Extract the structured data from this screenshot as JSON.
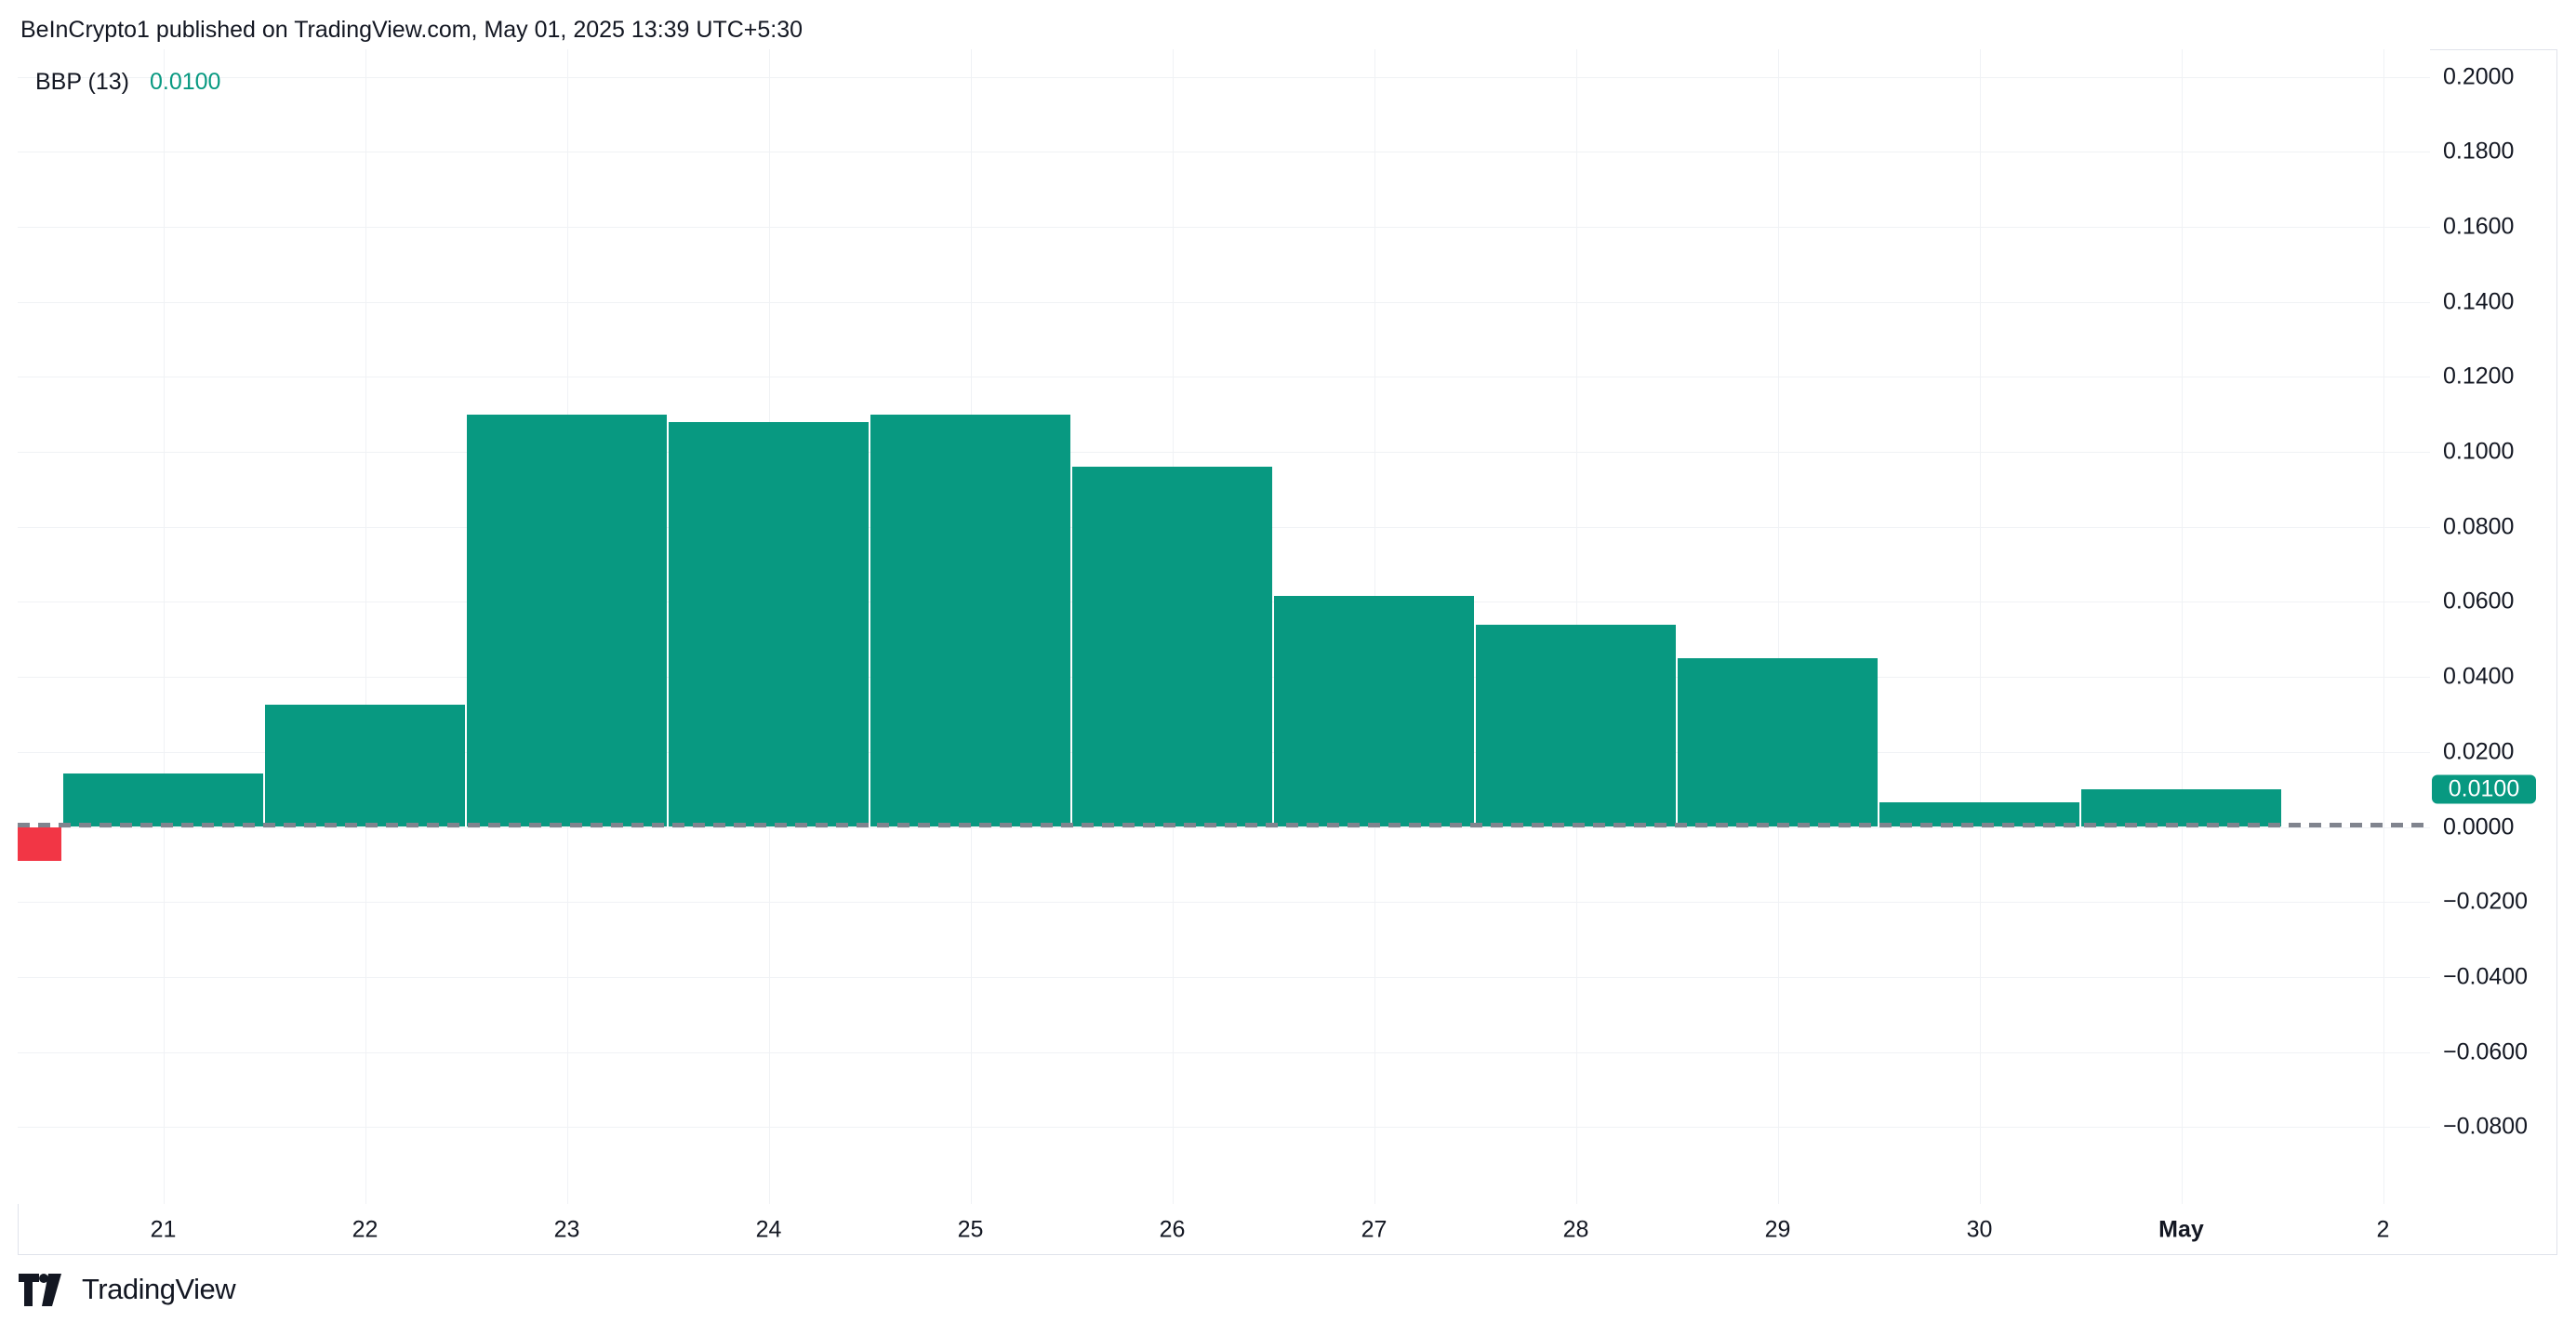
{
  "header": {
    "title": "BeInCrypto1 published on TradingView.com, May 01, 2025 13:39 UTC+5:30"
  },
  "legend": {
    "indicator": "BBP (13)",
    "value": "0.0100"
  },
  "y_axis": {
    "tick_labels": [
      "0.2000",
      "0.1800",
      "0.1600",
      "0.1400",
      "0.1200",
      "0.1000",
      "0.0800",
      "0.0600",
      "0.0400",
      "0.0200",
      "0.0000",
      "−0.0200",
      "−0.0400",
      "−0.0600",
      "−0.0800"
    ],
    "tick_values": [
      0.2,
      0.18,
      0.16,
      0.14,
      0.12,
      0.1,
      0.08,
      0.06,
      0.04,
      0.02,
      0.0,
      -0.02,
      -0.04,
      -0.06,
      -0.08
    ],
    "badge_label": "0.0100",
    "badge_value": 0.01
  },
  "x_axis": {
    "labels": [
      {
        "text": "21",
        "bold": false
      },
      {
        "text": "22",
        "bold": false
      },
      {
        "text": "23",
        "bold": false
      },
      {
        "text": "24",
        "bold": false
      },
      {
        "text": "25",
        "bold": false
      },
      {
        "text": "26",
        "bold": false
      },
      {
        "text": "27",
        "bold": false
      },
      {
        "text": "28",
        "bold": false
      },
      {
        "text": "29",
        "bold": false
      },
      {
        "text": "30",
        "bold": false
      },
      {
        "text": "May",
        "bold": true
      },
      {
        "text": "2",
        "bold": false
      }
    ]
  },
  "footer": {
    "brand": "TradingView"
  },
  "colors": {
    "positive": "#089981",
    "negative": "#F23645",
    "text": "#131722",
    "grid": "#F0F2F5",
    "frame": "#E0E3EB",
    "zero_line": "#80848E",
    "badge_bg": "#089981",
    "badge_text": "#FFFFFF"
  },
  "chart_data": {
    "type": "bar",
    "title": "BBP (13) histogram",
    "x": [
      "Apr 20",
      "Apr 21",
      "Apr 22",
      "Apr 23",
      "Apr 24",
      "Apr 25",
      "Apr 26",
      "Apr 27",
      "Apr 28",
      "Apr 29",
      "Apr 30",
      "May 1"
    ],
    "values": [
      -0.009,
      0.0142,
      0.0325,
      0.11,
      0.108,
      0.11,
      0.096,
      0.0615,
      0.054,
      0.045,
      0.0065,
      0.01
    ],
    "current_value": 0.01,
    "first_bar_partially_visible": true,
    "xlabel": "",
    "ylabel": "",
    "ylim": [
      -0.1004,
      0.2074
    ],
    "y_tick_step": 0.02,
    "grid": true,
    "zero_line_style": "dashed",
    "legend_position": "top-left",
    "x_axis_end_label_without_bar": "2"
  }
}
